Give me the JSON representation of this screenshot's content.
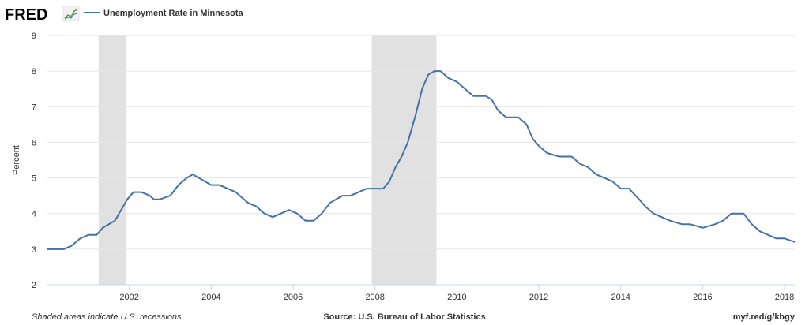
{
  "header": {
    "logo_text": "FRED",
    "legend_label": "Unemployment Rate in Minnesota"
  },
  "footer": {
    "left": "Shaded areas indicate U.S. recessions",
    "center": "Source: U.S. Bureau of Labor Statistics",
    "right": "myf.red/g/kbgy"
  },
  "colors": {
    "line": "#4572a7",
    "recession": "#e1e1e1",
    "grid": "#e6e6e6",
    "background": "#ffffff"
  },
  "chart_data": {
    "type": "line",
    "title": "",
    "xlabel": "",
    "ylabel": "Percent",
    "ylim": [
      2,
      9
    ],
    "yticks": [
      2,
      3,
      4,
      5,
      6,
      7,
      8,
      9
    ],
    "xlim": [
      2000.0,
      2018.25
    ],
    "xticks": [
      2002,
      2004,
      2006,
      2008,
      2010,
      2012,
      2014,
      2016,
      2018
    ],
    "grid": true,
    "legend_position": "top-left",
    "recessions": [
      [
        2001.25,
        2001.92
      ],
      [
        2007.92,
        2009.5
      ]
    ],
    "series": [
      {
        "name": "Unemployment Rate in Minnesota",
        "x": [
          2000.0,
          2000.4,
          2000.6,
          2000.8,
          2001.0,
          2001.2,
          2001.35,
          2001.5,
          2001.65,
          2001.8,
          2001.95,
          2002.1,
          2002.3,
          2002.5,
          2002.6,
          2002.75,
          2003.0,
          2003.2,
          2003.4,
          2003.55,
          2003.7,
          2003.85,
          2004.0,
          2004.2,
          2004.4,
          2004.6,
          2004.9,
          2005.1,
          2005.3,
          2005.5,
          2005.7,
          2005.9,
          2006.1,
          2006.3,
          2006.5,
          2006.7,
          2006.9,
          2007.2,
          2007.4,
          2007.6,
          2007.8,
          2008.0,
          2008.2,
          2008.35,
          2008.5,
          2008.65,
          2008.8,
          2009.0,
          2009.15,
          2009.3,
          2009.45,
          2009.6,
          2009.8,
          2010.0,
          2010.2,
          2010.4,
          2010.7,
          2010.85,
          2011.0,
          2011.2,
          2011.5,
          2011.7,
          2011.85,
          2012.0,
          2012.2,
          2012.5,
          2012.8,
          2013.0,
          2013.2,
          2013.4,
          2013.6,
          2013.8,
          2014.0,
          2014.2,
          2014.45,
          2014.6,
          2014.8,
          2015.0,
          2015.2,
          2015.5,
          2015.7,
          2016.0,
          2016.3,
          2016.5,
          2016.7,
          2017.0,
          2017.2,
          2017.4,
          2017.6,
          2017.8,
          2018.0,
          2018.25
        ],
        "values": [
          3.0,
          3.0,
          3.1,
          3.3,
          3.4,
          3.4,
          3.6,
          3.7,
          3.8,
          4.1,
          4.4,
          4.6,
          4.6,
          4.5,
          4.4,
          4.4,
          4.5,
          4.8,
          5.0,
          5.1,
          5.0,
          4.9,
          4.8,
          4.8,
          4.7,
          4.6,
          4.3,
          4.2,
          4.0,
          3.9,
          4.0,
          4.1,
          4.0,
          3.8,
          3.8,
          4.0,
          4.3,
          4.5,
          4.5,
          4.6,
          4.7,
          4.7,
          4.7,
          4.9,
          5.3,
          5.6,
          6.0,
          6.8,
          7.5,
          7.9,
          8.0,
          8.0,
          7.8,
          7.7,
          7.5,
          7.3,
          7.3,
          7.2,
          6.9,
          6.7,
          6.7,
          6.5,
          6.1,
          5.9,
          5.7,
          5.6,
          5.6,
          5.4,
          5.3,
          5.1,
          5.0,
          4.9,
          4.7,
          4.7,
          4.4,
          4.2,
          4.0,
          3.9,
          3.8,
          3.7,
          3.7,
          3.6,
          3.7,
          3.8,
          4.0,
          4.0,
          3.7,
          3.5,
          3.4,
          3.3,
          3.3,
          3.2
        ]
      }
    ]
  }
}
